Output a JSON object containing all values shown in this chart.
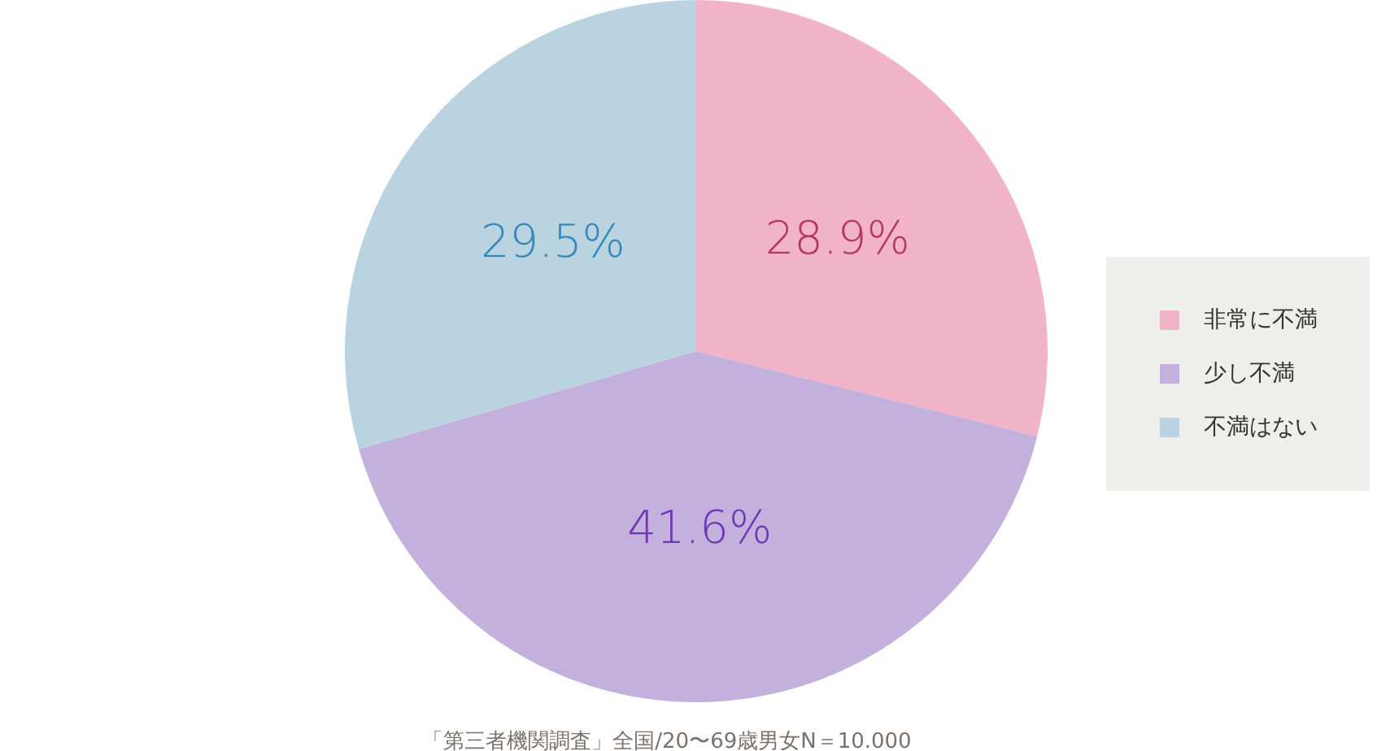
{
  "chart_data": {
    "type": "pie",
    "categories": [
      "非常に不満",
      "少し不満",
      "不満はない"
    ],
    "values": [
      28.9,
      41.6,
      29.5
    ],
    "colors": [
      "#f0b3c8",
      "#c4b0dd",
      "#bad3e1"
    ],
    "value_labels": [
      "28.9%",
      "41.6%",
      "29.5%"
    ],
    "legend": "right",
    "annotations": [
      "「第三者機関調査」全国/20〜69歳男女N＝10.000"
    ]
  }
}
